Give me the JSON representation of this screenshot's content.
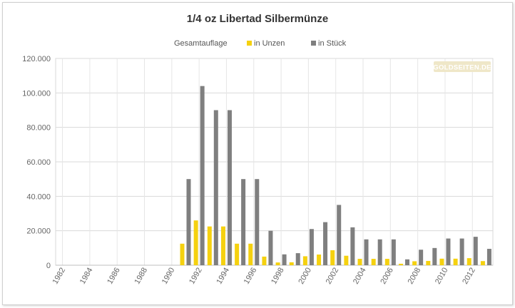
{
  "chart_data": {
    "type": "bar",
    "title": "1/4 oz Libertad Silbermünze",
    "legend": {
      "title": "Gesamtauflage",
      "placement": "top"
    },
    "watermark": "GOLDSEITEN.DE",
    "categories": [
      "1982",
      "1983",
      "1984",
      "1985",
      "1986",
      "1987",
      "1988",
      "1989",
      "1990",
      "1991",
      "1992",
      "1993",
      "1994",
      "1995",
      "1996",
      "1997",
      "1998",
      "1999",
      "2000",
      "2001",
      "2002",
      "2003",
      "2004",
      "2005",
      "2006",
      "2007",
      "2008",
      "2009",
      "2010",
      "2011",
      "2012",
      "2013"
    ],
    "x_tick_labels": [
      "1982",
      "1984",
      "1986",
      "1988",
      "1990",
      "1992",
      "1994",
      "1996",
      "1998",
      "2000",
      "2002",
      "2004",
      "2006",
      "2008",
      "2010",
      "2012"
    ],
    "series": [
      {
        "name": "in Unzen",
        "color": "#f5d10f",
        "values": [
          0,
          0,
          0,
          0,
          0,
          0,
          0,
          0,
          0,
          12500,
          26000,
          22500,
          22500,
          12500,
          12500,
          5000,
          1600,
          1700,
          5200,
          6200,
          8700,
          5500,
          3700,
          3700,
          3700,
          850,
          2300,
          2500,
          3800,
          3800,
          4100,
          2400
        ]
      },
      {
        "name": "in Stück",
        "color": "#7f7f7f",
        "values": [
          0,
          0,
          0,
          0,
          0,
          0,
          0,
          0,
          0,
          50000,
          104000,
          90000,
          90000,
          50000,
          50000,
          20000,
          6300,
          7000,
          21000,
          25000,
          35000,
          22000,
          15000,
          15000,
          15000,
          3400,
          9000,
          10000,
          15500,
          15500,
          16500,
          9500
        ]
      }
    ],
    "y_ticks": [
      "0",
      "20.000",
      "40.000",
      "60.000",
      "80.000",
      "100.000",
      "120.000"
    ],
    "ylim": [
      0,
      120000
    ],
    "grid": true,
    "xlabel": "",
    "ylabel": ""
  }
}
